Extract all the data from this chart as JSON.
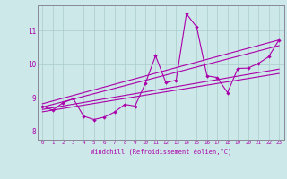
{
  "xlabel": "Windchill (Refroidissement éolien,°C)",
  "bg_color": "#cde8e8",
  "grid_color": "#aacccc",
  "line_color": "#aa00aa",
  "spine_color": "#888899",
  "xlim": [
    -0.5,
    23.5
  ],
  "ylim": [
    7.75,
    11.75
  ],
  "xticks": [
    0,
    1,
    2,
    3,
    4,
    5,
    6,
    7,
    8,
    9,
    10,
    11,
    12,
    13,
    14,
    15,
    16,
    17,
    18,
    19,
    20,
    21,
    22,
    23
  ],
  "yticks": [
    8,
    9,
    10,
    11
  ],
  "ytick_labels": [
    "8",
    "9",
    "10",
    "11"
  ],
  "data_x": [
    0,
    1,
    2,
    3,
    4,
    5,
    6,
    7,
    8,
    9,
    10,
    11,
    12,
    13,
    14,
    15,
    16,
    17,
    18,
    19,
    20,
    21,
    22,
    23
  ],
  "data_y": [
    8.75,
    8.63,
    8.85,
    8.97,
    8.45,
    8.35,
    8.42,
    8.57,
    8.8,
    8.75,
    9.42,
    10.25,
    9.45,
    9.52,
    11.5,
    11.1,
    9.65,
    9.6,
    9.15,
    9.87,
    9.88,
    10.02,
    10.22,
    10.72
  ],
  "trend1_x": [
    0,
    23
  ],
  "trend1_y": [
    8.58,
    9.72
  ],
  "trend2_x": [
    0,
    23
  ],
  "trend2_y": [
    8.65,
    9.85
  ],
  "trend3_x": [
    0,
    23
  ],
  "trend3_y": [
    8.72,
    10.55
  ],
  "trend4_x": [
    0,
    23
  ],
  "trend4_y": [
    8.82,
    10.72
  ]
}
